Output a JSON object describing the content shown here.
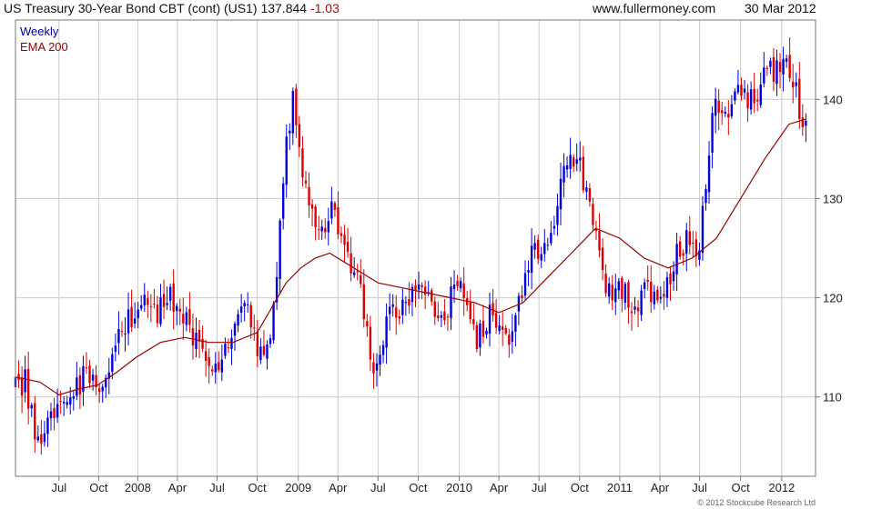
{
  "header": {
    "title": "US Treasury 30-Year  Bond CBT (cont) (US1) 137.844",
    "change": "-1.03",
    "site": "www.fullermoney.com",
    "date": "30 Mar 2012"
  },
  "credit": "© 2012 Stockcube Research Ltd",
  "colors": {
    "up": "#0000dd",
    "down": "#dd0000",
    "ema": "#990000",
    "grid": "#cccccc",
    "frame": "#777777"
  },
  "chart_data": {
    "type": "candlestick",
    "legend": [
      {
        "label": "Weekly",
        "color": "#0000aa"
      },
      {
        "label": "EMA 200",
        "color": "#990000"
      }
    ],
    "legend_placement": "top-left",
    "y_ticks": [
      110,
      120,
      130,
      140
    ],
    "ylim": [
      102,
      148
    ],
    "x_tick_labels": [
      "Jul",
      "Oct",
      "2008",
      "Apr",
      "Jul",
      "Oct",
      "2009",
      "Apr",
      "Jul",
      "Oct",
      "2010",
      "Apr",
      "Jul",
      "Oct",
      "2011",
      "Apr",
      "Jul",
      "Oct",
      "2012"
    ],
    "x_tick_positions": [
      0.09,
      0.172,
      0.253,
      0.335,
      0.417,
      0.5,
      0.585,
      0.667,
      0.75,
      0.833,
      0.918,
      1.0,
      1.083,
      1.167,
      1.25,
      1.333,
      1.415,
      1.5,
      1.585
    ],
    "xlim": [
      0.0,
      1.655
    ],
    "grid": true,
    "price_anchors": [
      [
        0.0,
        111
      ],
      [
        0.02,
        111.5
      ],
      [
        0.04,
        107
      ],
      [
        0.055,
        105.5
      ],
      [
        0.07,
        107.5
      ],
      [
        0.09,
        109
      ],
      [
        0.11,
        110.5
      ],
      [
        0.13,
        111
      ],
      [
        0.145,
        113
      ],
      [
        0.16,
        111
      ],
      [
        0.18,
        110.5
      ],
      [
        0.2,
        114
      ],
      [
        0.225,
        117
      ],
      [
        0.25,
        119
      ],
      [
        0.27,
        121
      ],
      [
        0.29,
        118
      ],
      [
        0.32,
        120.5
      ],
      [
        0.345,
        118
      ],
      [
        0.37,
        116
      ],
      [
        0.395,
        114
      ],
      [
        0.415,
        113
      ],
      [
        0.43,
        115
      ],
      [
        0.45,
        117
      ],
      [
        0.47,
        119
      ],
      [
        0.49,
        118
      ],
      [
        0.5,
        115
      ],
      [
        0.515,
        114
      ],
      [
        0.53,
        117
      ],
      [
        0.545,
        125
      ],
      [
        0.56,
        135
      ],
      [
        0.575,
        141
      ],
      [
        0.59,
        134
      ],
      [
        0.605,
        131
      ],
      [
        0.625,
        127
      ],
      [
        0.64,
        126
      ],
      [
        0.655,
        129
      ],
      [
        0.67,
        127
      ],
      [
        0.69,
        124
      ],
      [
        0.71,
        121
      ],
      [
        0.725,
        118
      ],
      [
        0.74,
        113
      ],
      [
        0.76,
        116
      ],
      [
        0.775,
        119
      ],
      [
        0.79,
        118
      ],
      [
        0.81,
        120
      ],
      [
        0.83,
        121
      ],
      [
        0.85,
        120
      ],
      [
        0.87,
        119
      ],
      [
        0.89,
        118
      ],
      [
        0.91,
        122
      ],
      [
        0.925,
        121
      ],
      [
        0.94,
        118
      ],
      [
        0.955,
        116
      ],
      [
        0.97,
        117
      ],
      [
        0.985,
        118.5
      ],
      [
        1.0,
        117
      ],
      [
        1.015,
        115.5
      ],
      [
        1.03,
        117
      ],
      [
        1.045,
        120
      ],
      [
        1.06,
        124
      ],
      [
        1.08,
        124.5
      ],
      [
        1.1,
        126
      ],
      [
        1.12,
        129
      ],
      [
        1.135,
        134
      ],
      [
        1.15,
        133
      ],
      [
        1.165,
        134
      ],
      [
        1.18,
        131
      ],
      [
        1.195,
        128
      ],
      [
        1.21,
        123
      ],
      [
        1.225,
        120
      ],
      [
        1.245,
        121
      ],
      [
        1.265,
        120
      ],
      [
        1.285,
        119
      ],
      [
        1.3,
        121
      ],
      [
        1.315,
        120
      ],
      [
        1.33,
        119
      ],
      [
        1.35,
        122
      ],
      [
        1.365,
        124
      ],
      [
        1.38,
        125
      ],
      [
        1.395,
        126
      ],
      [
        1.41,
        124
      ],
      [
        1.425,
        130
      ],
      [
        1.44,
        138
      ],
      [
        1.46,
        140
      ],
      [
        1.475,
        139
      ],
      [
        1.49,
        141
      ],
      [
        1.505,
        140
      ],
      [
        1.52,
        140
      ],
      [
        1.535,
        141
      ],
      [
        1.55,
        143
      ],
      [
        1.565,
        143
      ],
      [
        1.58,
        143
      ],
      [
        1.6,
        143
      ],
      [
        1.615,
        141
      ],
      [
        1.625,
        137
      ],
      [
        1.635,
        137.844
      ]
    ],
    "ema_anchors": [
      [
        0.0,
        112
      ],
      [
        0.05,
        111.5
      ],
      [
        0.09,
        110.2
      ],
      [
        0.13,
        110.8
      ],
      [
        0.17,
        111.2
      ],
      [
        0.21,
        112.5
      ],
      [
        0.25,
        114
      ],
      [
        0.3,
        115.5
      ],
      [
        0.35,
        116
      ],
      [
        0.4,
        115.5
      ],
      [
        0.45,
        115.5
      ],
      [
        0.5,
        116.5
      ],
      [
        0.53,
        119
      ],
      [
        0.56,
        121.5
      ],
      [
        0.59,
        123
      ],
      [
        0.62,
        124
      ],
      [
        0.65,
        124.5
      ],
      [
        0.7,
        123
      ],
      [
        0.75,
        121.5
      ],
      [
        0.8,
        121
      ],
      [
        0.85,
        120.5
      ],
      [
        0.9,
        120
      ],
      [
        0.95,
        119.5
      ],
      [
        1.0,
        118.5
      ],
      [
        1.05,
        119.5
      ],
      [
        1.1,
        122
      ],
      [
        1.15,
        124.5
      ],
      [
        1.2,
        127
      ],
      [
        1.25,
        126
      ],
      [
        1.3,
        124
      ],
      [
        1.35,
        123
      ],
      [
        1.4,
        124
      ],
      [
        1.45,
        126
      ],
      [
        1.5,
        130
      ],
      [
        1.55,
        134
      ],
      [
        1.6,
        137.5
      ],
      [
        1.635,
        138
      ]
    ]
  }
}
